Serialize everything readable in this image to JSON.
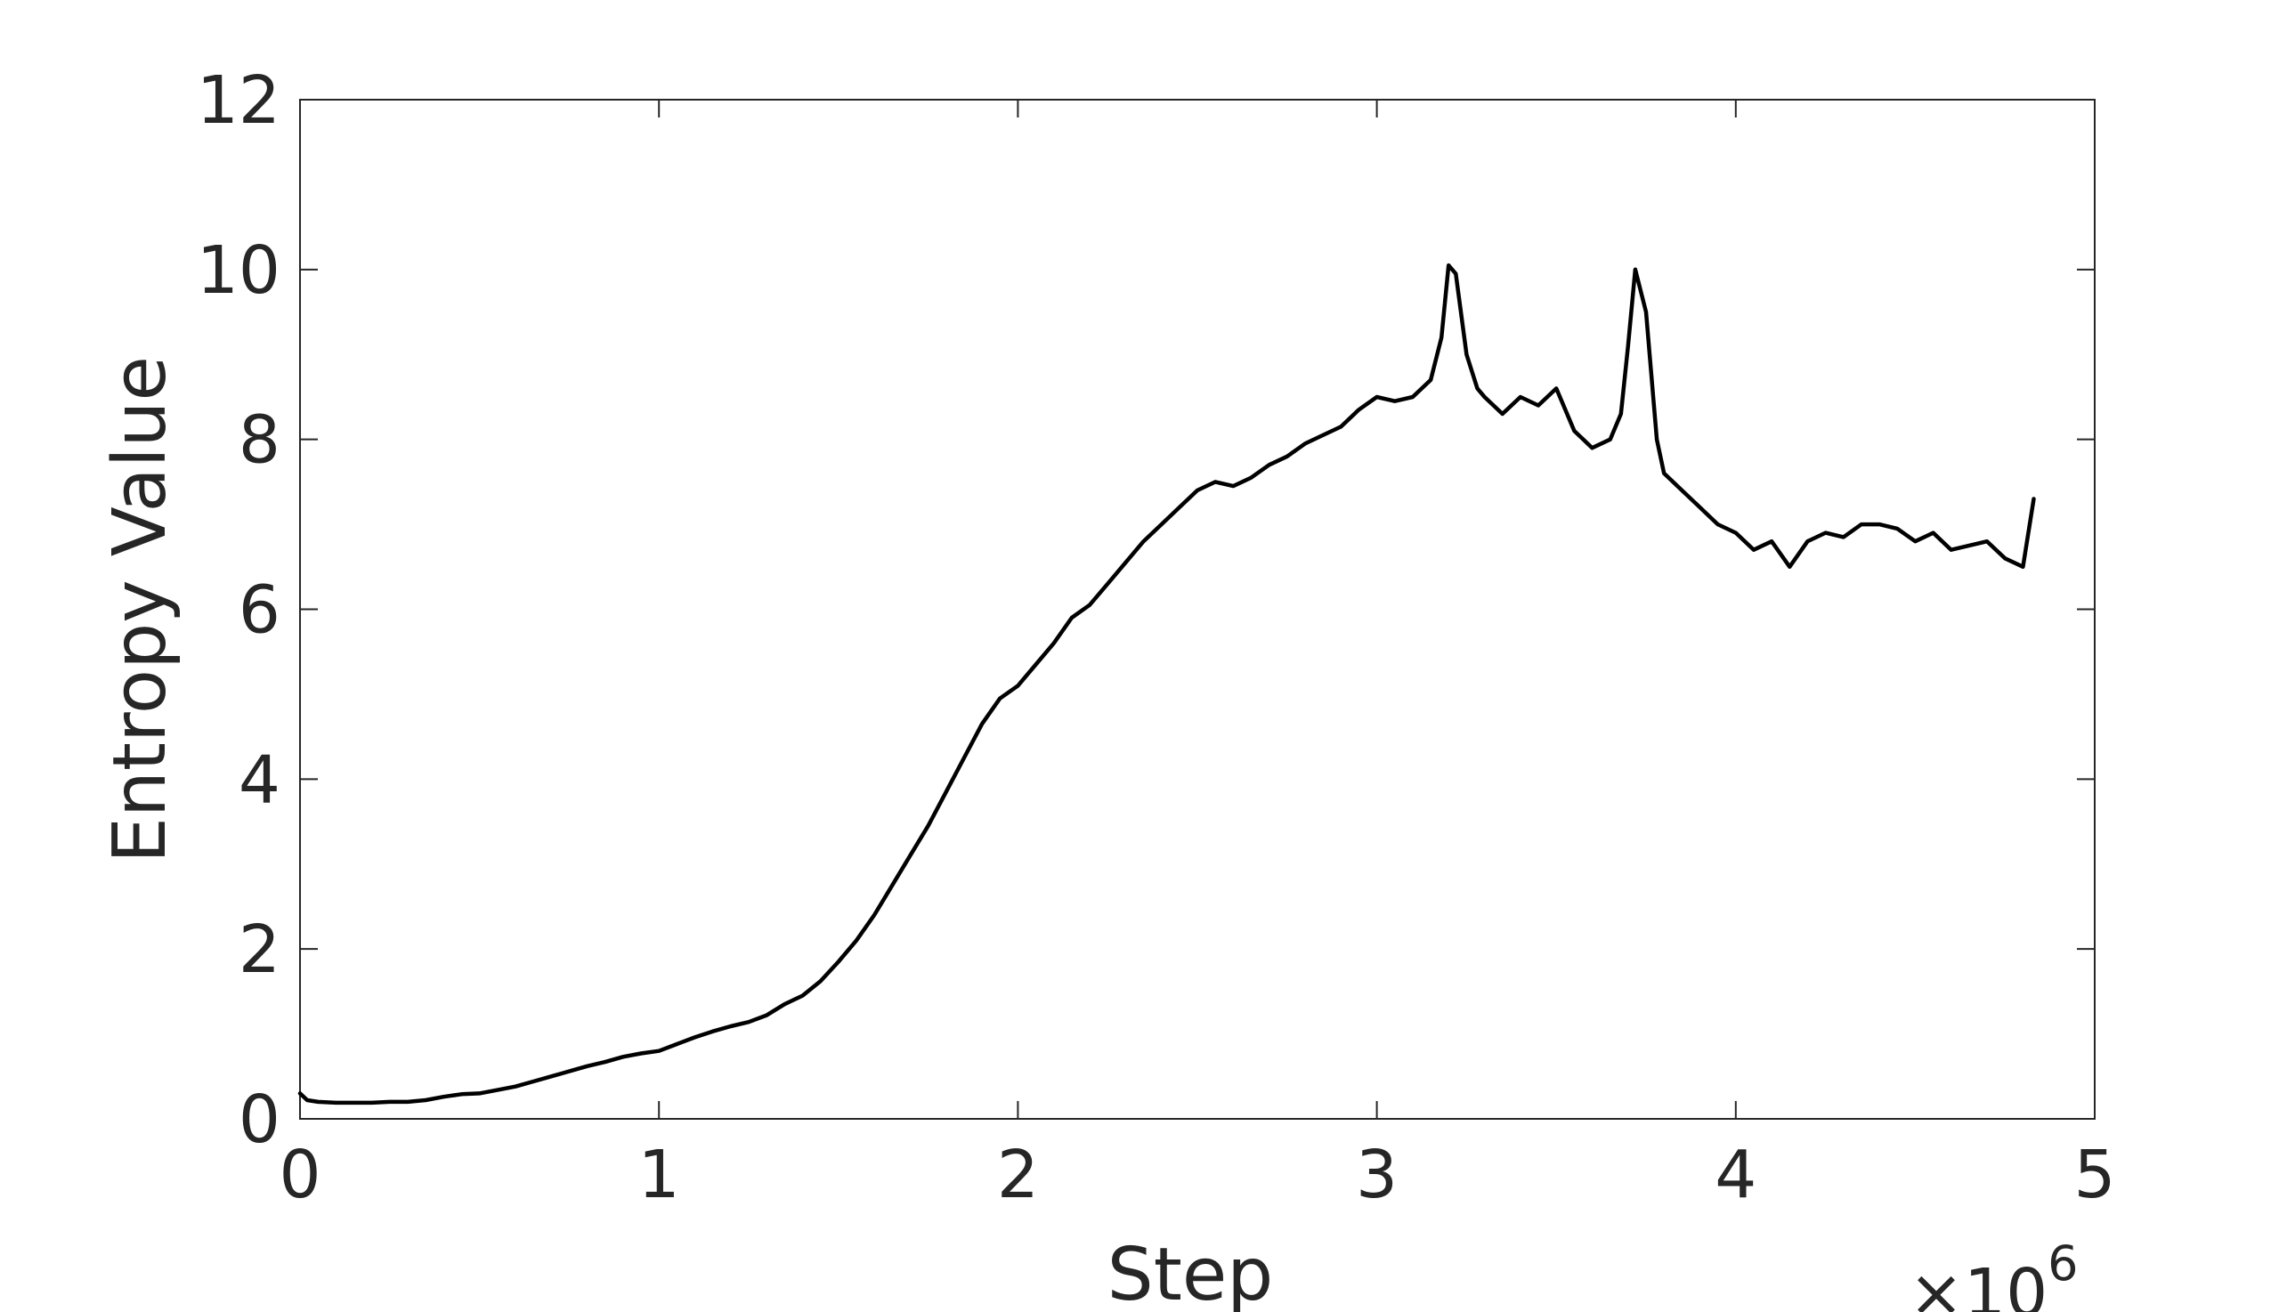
{
  "chart_data": {
    "type": "line",
    "title": "",
    "xlabel": "Step",
    "ylabel": "Entropy Value",
    "x_multiplier_label": "×10",
    "x_multiplier_exponent": "6",
    "xlim": [
      0,
      5
    ],
    "ylim": [
      0,
      12
    ],
    "x_ticks": [
      0,
      1,
      2,
      3,
      4,
      5
    ],
    "x_tick_labels": [
      "0",
      "1",
      "2",
      "3",
      "4",
      "5"
    ],
    "y_ticks": [
      0,
      2,
      4,
      6,
      8,
      10,
      12
    ],
    "y_tick_labels": [
      "0",
      "2",
      "4",
      "6",
      "8",
      "10",
      "12"
    ],
    "grid": false,
    "box": true,
    "colors": {
      "line": "#000000",
      "axes": "#262626",
      "frame": "#262626"
    },
    "series": [
      {
        "x": [
          0.0,
          0.02,
          0.05,
          0.1,
          0.15,
          0.2,
          0.25,
          0.3,
          0.35,
          0.4,
          0.45,
          0.5,
          0.55,
          0.6,
          0.65,
          0.7,
          0.75,
          0.8,
          0.85,
          0.9,
          0.95,
          1.0,
          1.05,
          1.1,
          1.15,
          1.2,
          1.25,
          1.3,
          1.35,
          1.4,
          1.45,
          1.5,
          1.55,
          1.6,
          1.65,
          1.7,
          1.75,
          1.8,
          1.85,
          1.9,
          1.95,
          2.0,
          2.05,
          2.1,
          2.15,
          2.2,
          2.25,
          2.3,
          2.35,
          2.4,
          2.45,
          2.5,
          2.55,
          2.6,
          2.65,
          2.7,
          2.75,
          2.8,
          2.85,
          2.9,
          2.95,
          3.0,
          3.05,
          3.1,
          3.15,
          3.18,
          3.2,
          3.22,
          3.25,
          3.28,
          3.3,
          3.35,
          3.4,
          3.45,
          3.5,
          3.55,
          3.6,
          3.65,
          3.68,
          3.7,
          3.72,
          3.75,
          3.78,
          3.8,
          3.85,
          3.9,
          3.95,
          4.0,
          4.05,
          4.1,
          4.15,
          4.2,
          4.25,
          4.3,
          4.35,
          4.4,
          4.45,
          4.5,
          4.55,
          4.6,
          4.65,
          4.7,
          4.75,
          4.8,
          4.83
        ],
        "y": [
          0.3,
          0.22,
          0.2,
          0.19,
          0.19,
          0.19,
          0.2,
          0.2,
          0.22,
          0.26,
          0.29,
          0.3,
          0.34,
          0.38,
          0.44,
          0.5,
          0.56,
          0.62,
          0.67,
          0.73,
          0.77,
          0.8,
          0.88,
          0.96,
          1.03,
          1.09,
          1.14,
          1.22,
          1.35,
          1.45,
          1.62,
          1.85,
          2.1,
          2.4,
          2.75,
          3.1,
          3.45,
          3.85,
          4.25,
          4.65,
          4.95,
          5.1,
          5.35,
          5.6,
          5.9,
          6.05,
          6.3,
          6.55,
          6.8,
          7.0,
          7.2,
          7.4,
          7.5,
          7.45,
          7.55,
          7.7,
          7.8,
          7.95,
          8.05,
          8.15,
          8.35,
          8.5,
          8.45,
          8.5,
          8.7,
          9.2,
          10.05,
          9.95,
          9.0,
          8.6,
          8.5,
          8.3,
          8.5,
          8.4,
          8.6,
          8.1,
          7.9,
          8.0,
          8.3,
          9.1,
          10.0,
          9.5,
          8.0,
          7.6,
          7.4,
          7.2,
          7.0,
          6.9,
          6.7,
          6.8,
          6.5,
          6.8,
          6.9,
          6.85,
          7.0,
          7.0,
          6.95,
          6.8,
          6.9,
          6.7,
          6.75,
          6.8,
          6.6,
          6.5,
          7.3
        ]
      }
    ]
  }
}
